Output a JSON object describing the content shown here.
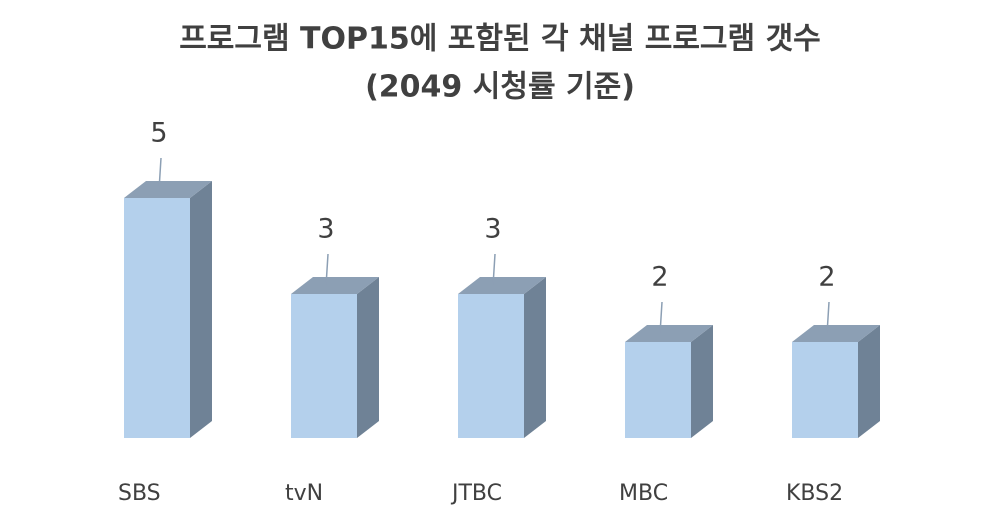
{
  "chart_data": {
    "type": "bar3d",
    "title": "프로그램 TOP15에 포함된 각 채널 프로그램 갯수",
    "subtitle": "(2049 시청률 기준)",
    "categories": [
      "SBS",
      "tvN",
      "JTBC",
      "MBC",
      "KBS2"
    ],
    "values": [
      5,
      3,
      3,
      2,
      2
    ],
    "color": "#b4d0ec"
  }
}
